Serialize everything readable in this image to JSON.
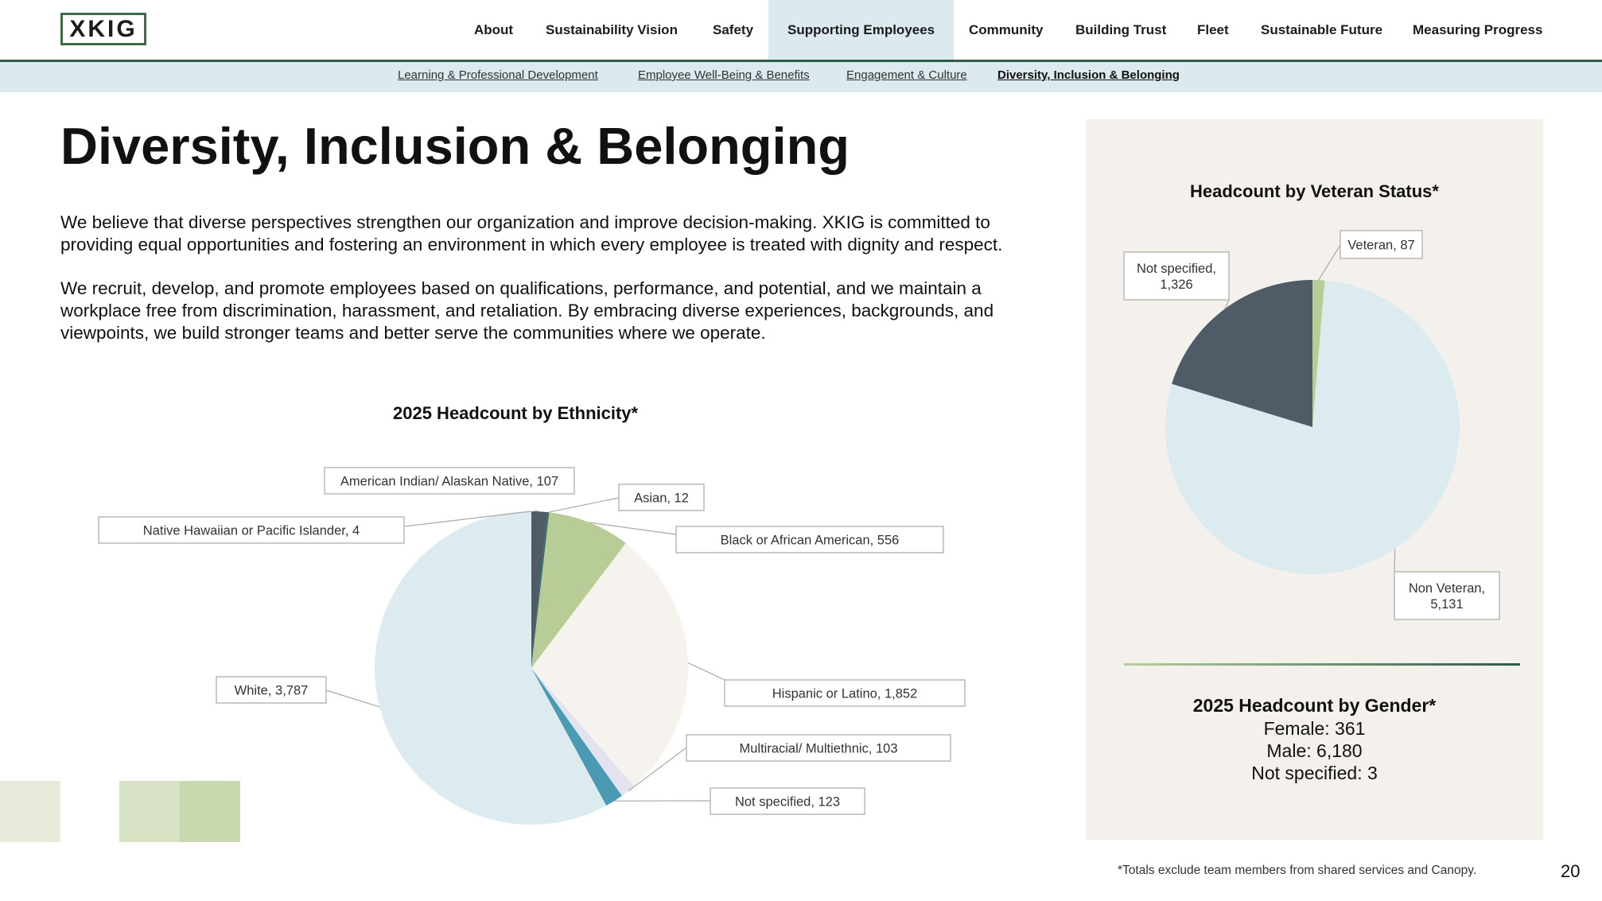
{
  "header": {
    "logo": "XKIG",
    "nav": [
      "About",
      "Sustainability Vision",
      "Safety",
      "Supporting Employees",
      "Community",
      "Building Trust",
      "Fleet",
      "Sustainable Future",
      "Measuring Progress"
    ],
    "active_nav": "Supporting Employees",
    "subnav": [
      "Learning & Professional Development",
      "Employee Well-Being & Benefits",
      "Engagement & Culture",
      "Diversity, Inclusion & Belonging"
    ],
    "active_subnav": "Diversity, Inclusion & Belonging"
  },
  "page": {
    "title": "Diversity, Inclusion & Belonging",
    "para1": "We believe that diverse perspectives strengthen our organization and improve decision-making. XKIG is committed to providing equal opportunities and fostering an environment in which every employee is treated with dignity and respect.",
    "para2": "We recruit, develop, and promote employees based on qualifications, performance, and potential, and we maintain a workplace free from discrimination, harassment, and retaliation. By embracing diverse experiences, backgrounds, and viewpoints, we build stronger teams and better serve the communities where we operate.",
    "footnote": "*Totals exclude team members from shared services and Canopy.",
    "page_number": "20"
  },
  "gender": {
    "title": "2025 Headcount by Gender*",
    "lines": [
      "Female: 361",
      "Male: 6,180",
      "Not specified: 3"
    ]
  },
  "colors": {
    "dark_green": "#2e5a47",
    "light_blue": "#dce9ee",
    "panel_bg": "#f4f1ec"
  },
  "chart_data": [
    {
      "type": "pie",
      "title": "2025 Headcount by Ethnicity*",
      "categories": [
        "American Indian/ Alaskan Native",
        "Asian",
        "Black or African American",
        "Hispanic or Latino",
        "Multiracial/ Multiethnic",
        "Not specified",
        "White",
        "Native Hawaiian or Pacific Islander"
      ],
      "values": [
        107,
        12,
        556,
        1852,
        103,
        123,
        3787,
        4
      ],
      "labels": [
        "American Indian/ Alaskan Native, 107",
        "Asian, 12",
        "Black or African American, 556",
        "Hispanic or Latino, 1,852",
        "Multiracial/ Multiethnic, 103",
        "Not specified, 123",
        "White, 3,787",
        "Native Hawaiian or Pacific Islander, 4"
      ],
      "colors": [
        "#4f5b66",
        "#2f6f5f",
        "#b8cc98",
        "#f6f3ee",
        "#e3e3f0",
        "#4a9ab3",
        "#dcebf0",
        "#e6ecd9"
      ]
    },
    {
      "type": "pie",
      "title": "Headcount by Veteran Status*",
      "categories": [
        "Veteran",
        "Non Veteran",
        "Not specified"
      ],
      "values": [
        87,
        5131,
        1326
      ],
      "labels": [
        "Veteran, 87",
        "Non Veteran, 5,131",
        "Not specified, 1,326"
      ],
      "colors": [
        "#b8cc98",
        "#dcebf0",
        "#4f5b66"
      ]
    }
  ]
}
